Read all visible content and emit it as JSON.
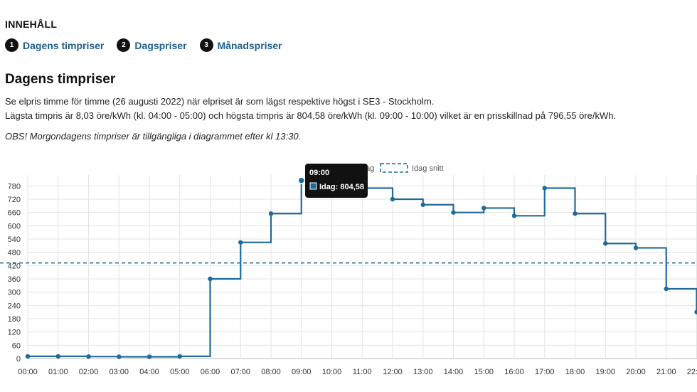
{
  "toc": {
    "title": "INNEHÅLL",
    "items": [
      {
        "num": "1",
        "label": "Dagens timpriser"
      },
      {
        "num": "2",
        "label": "Dagspriser"
      },
      {
        "num": "3",
        "label": "Månadspriser"
      }
    ]
  },
  "section": {
    "title": "Dagens timpriser",
    "line1": "Se elpris timme för timme (26 augusti 2022) när elpriset är som lägst respektive högst i SE3 - Stockholm.",
    "line2": "Lägsta timpris är 8,03 öre/kWh (kl. 04:00 - 05:00) och högsta timpris är 804,58 öre/kWh (kl. 09:00 - 10:00) vilket är en prisskillnad på 796,55 öre/kWh.",
    "note": "OBS! Morgondagens timpriser är tillgängliga i diagrammet efter kl 13:30."
  },
  "colors": {
    "line": "#1f6a9a",
    "grid": "#e3e3e3",
    "tooltip_bg": "#111111"
  },
  "chart_data": {
    "type": "line",
    "step": true,
    "x": [
      "00:00",
      "01:00",
      "02:00",
      "03:00",
      "04:00",
      "05:00",
      "06:00",
      "07:00",
      "08:00",
      "09:00",
      "10:00",
      "11:00",
      "12:00",
      "13:00",
      "14:00",
      "15:00",
      "16:00",
      "17:00",
      "18:00",
      "19:00",
      "20:00",
      "21:00",
      "22:00"
    ],
    "series": [
      {
        "name": "Idag",
        "style": "solid",
        "values": [
          10,
          10,
          9,
          8,
          8.03,
          10,
          360,
          525,
          655,
          804.58,
          770,
          770,
          720,
          695,
          660,
          680,
          645,
          770,
          655,
          520,
          500,
          315,
          210
        ]
      },
      {
        "name": "Idag snitt",
        "style": "dashed",
        "value": 432
      }
    ],
    "yticks": [
      0,
      60,
      120,
      180,
      240,
      300,
      360,
      420,
      480,
      540,
      600,
      660,
      720,
      780
    ],
    "ylim": [
      0,
      810
    ],
    "grid": true,
    "legend": "top-center",
    "tooltip": {
      "time": "09:00",
      "label": "Idag: 804,58"
    }
  }
}
